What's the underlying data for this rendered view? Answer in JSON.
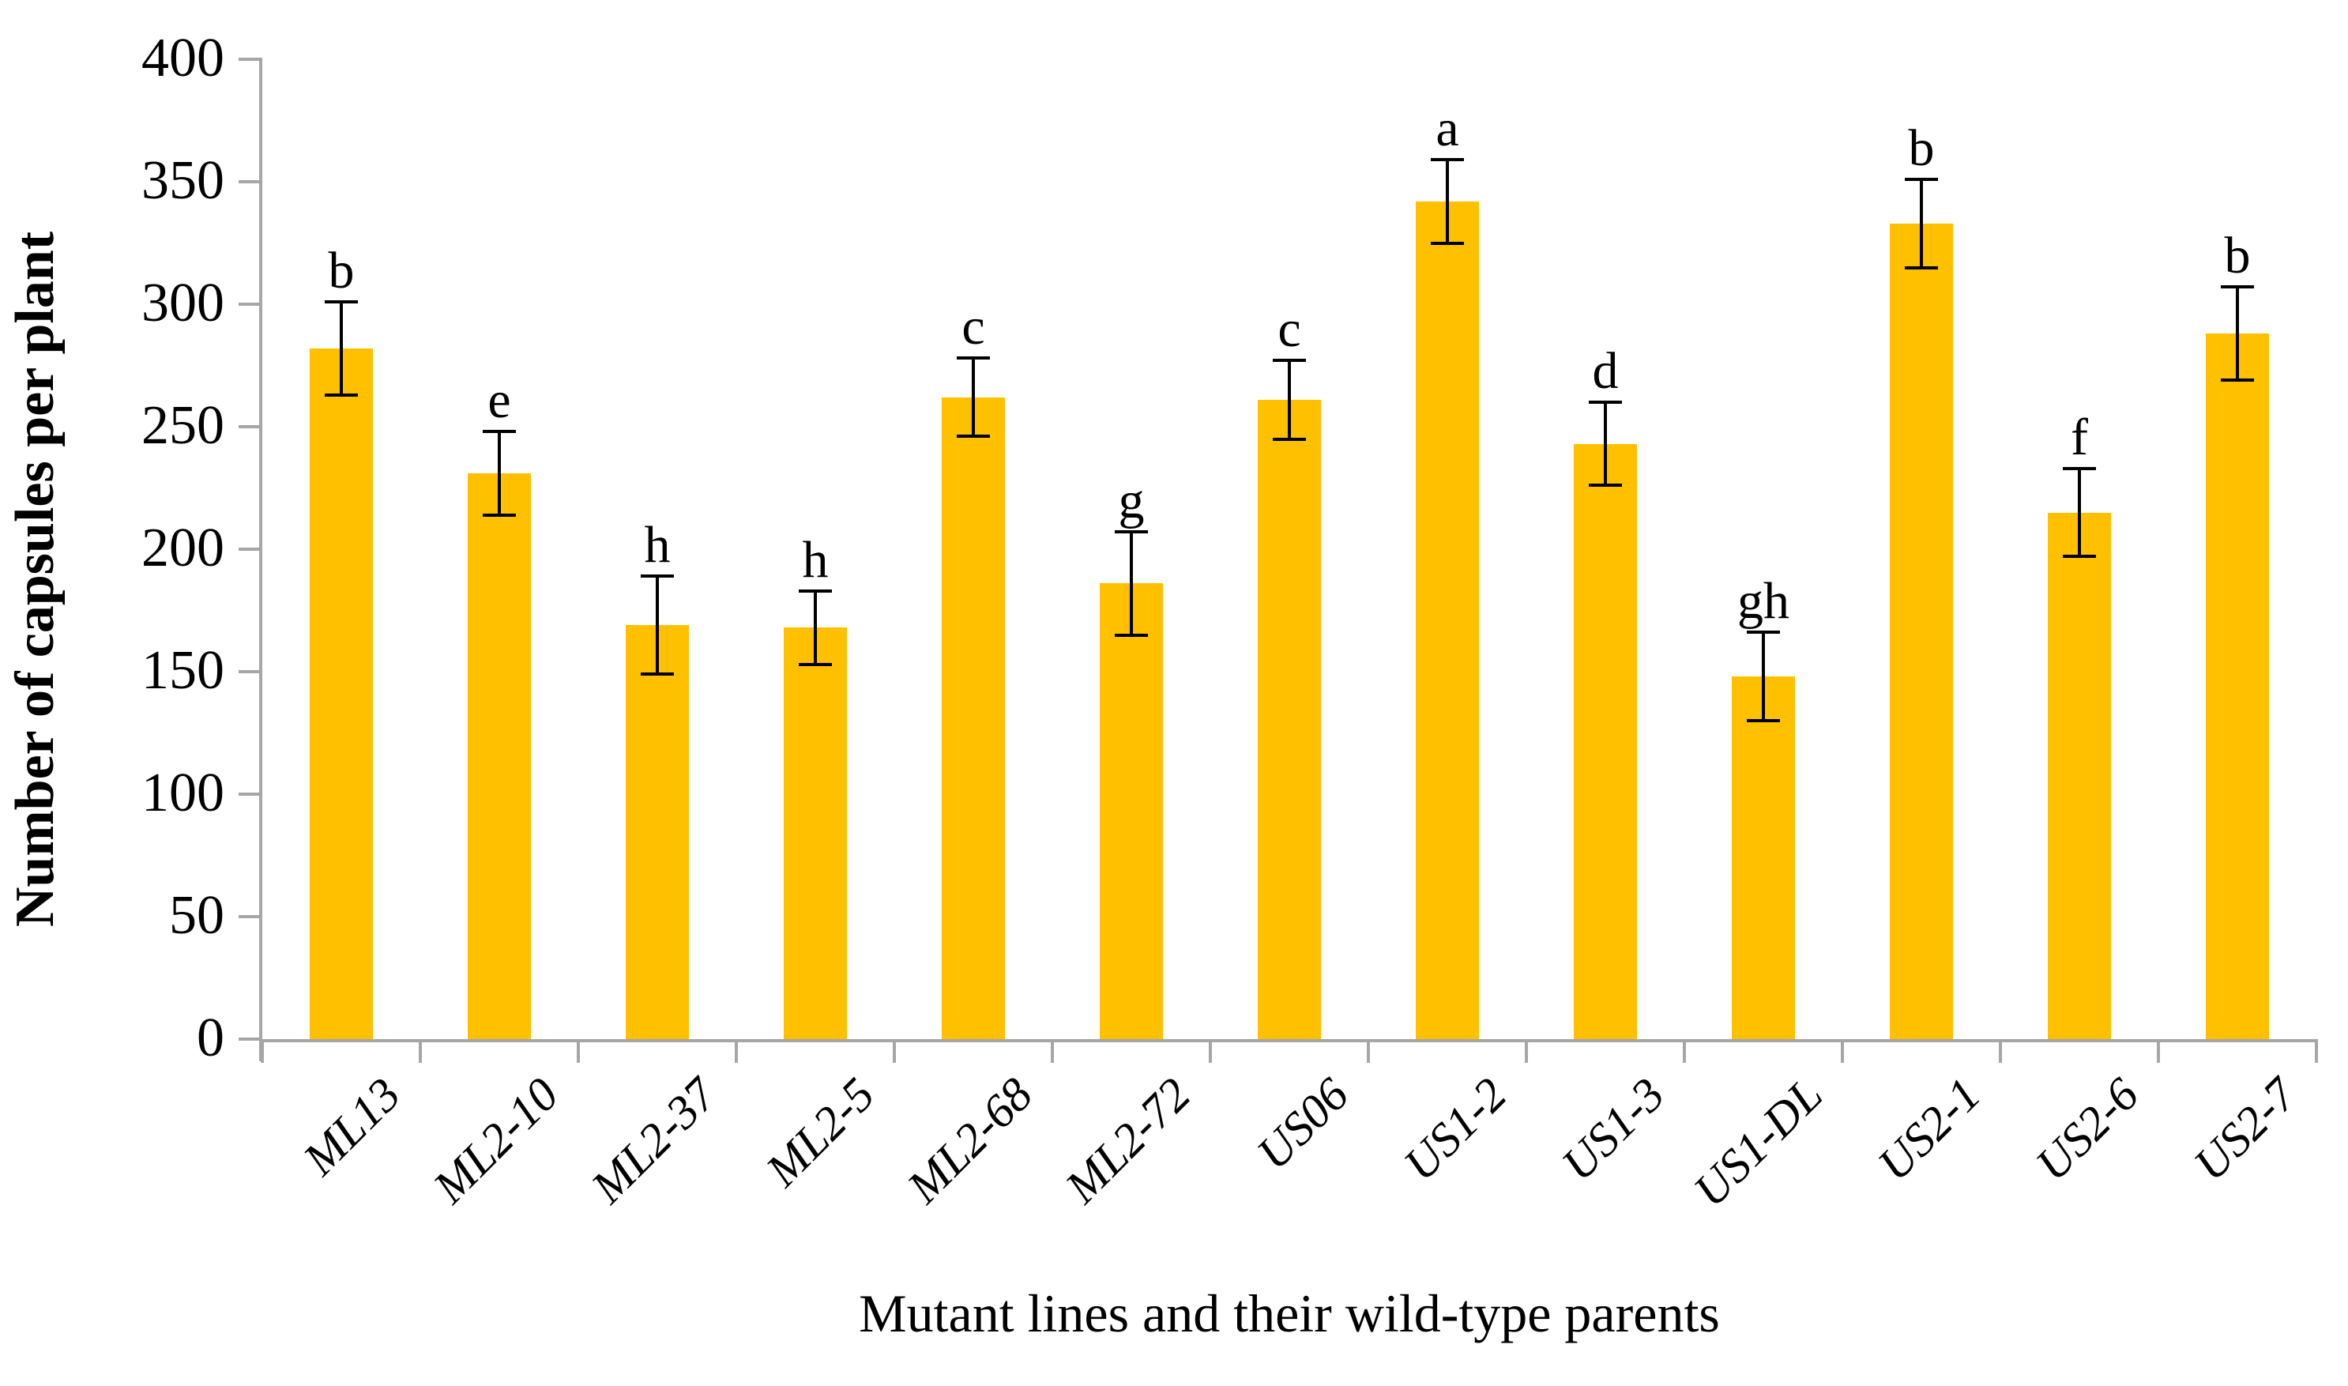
{
  "chart_data": {
    "type": "bar",
    "title": "",
    "xlabel": "Mutant lines and their wild-type parents",
    "ylabel": "Number of capsules per plant",
    "ylim": [
      0,
      400
    ],
    "ytick_step": 50,
    "yticks": [
      0,
      50,
      100,
      150,
      200,
      250,
      300,
      350,
      400
    ],
    "grid": false,
    "legend_position": "none",
    "bar_color": "#FFC000",
    "axis_color": "#A6A6A6",
    "error_bar_color": "#000000",
    "categories": [
      "ML13",
      "ML2-10",
      "ML2-37",
      "ML2-5",
      "ML2-68",
      "ML2-72",
      "US06",
      "US1-2",
      "US1-3",
      "US1-DL",
      "US2-1",
      "US2-6",
      "US2-7"
    ],
    "values": [
      282,
      231,
      169,
      168,
      262,
      186,
      261,
      342,
      243,
      148,
      333,
      215,
      288
    ],
    "errors": [
      19,
      17,
      20,
      15,
      16,
      21,
      16,
      17,
      17,
      18,
      18,
      18,
      19
    ],
    "sig_letters": [
      "b",
      "e",
      "h",
      "h",
      "c",
      "g",
      "c",
      "a",
      "d",
      "gh",
      "b",
      "f",
      "b"
    ]
  }
}
